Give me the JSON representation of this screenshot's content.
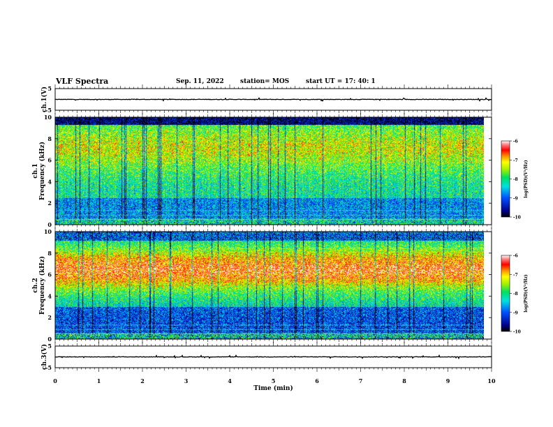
{
  "header": {
    "title": "VLF Spectra",
    "date": "Sep. 11, 2022",
    "station": "station= MOS",
    "start": "start  UT =   17: 40: 1"
  },
  "chart_data": [
    {
      "type": "line",
      "name": "ch1-waveform",
      "ylabel": "ch.1(V)",
      "ylim": [
        -5,
        5
      ],
      "yticks": [
        5,
        -5
      ],
      "xlim": [
        0,
        10
      ]
    },
    {
      "type": "heatmap",
      "name": "ch1-spectrogram",
      "ylabel": "ch.1\nFrequency (kHz)",
      "ylabel_lines": [
        "ch.1",
        "Frequency (kHz)"
      ],
      "ylim": [
        0,
        10
      ],
      "yticks": [
        0,
        2,
        4,
        6,
        8,
        10
      ],
      "xlim": [
        0,
        10
      ],
      "data_end_min": 9.83,
      "colorbar": {
        "label": "log(PSD)(V²/Hz)",
        "range": [
          -10,
          -6
        ],
        "ticks": [
          -10,
          -9,
          -8,
          -7,
          -6
        ]
      }
    },
    {
      "type": "heatmap",
      "name": "ch2-spectrogram",
      "ylabel": "ch.2\nFrequency (kHz)",
      "ylabel_lines": [
        "ch.2",
        "Frequency (kHz)"
      ],
      "ylim": [
        0,
        10
      ],
      "yticks": [
        0,
        2,
        4,
        6,
        8,
        10
      ],
      "xlim": [
        0,
        10
      ],
      "data_end_min": 9.83,
      "colorbar": {
        "label": "log(PSD)(V²/Hz)",
        "range": [
          -10,
          -6
        ],
        "ticks": [
          -10,
          -9,
          -8,
          -7,
          -6
        ]
      }
    },
    {
      "type": "line",
      "name": "ch3-waveform",
      "ylabel": "ch.3(V)",
      "ylim": [
        -5,
        5
      ],
      "yticks": [
        5,
        -5
      ],
      "xlim": [
        0,
        10
      ],
      "xlabel": "Time (min)",
      "xticks": [
        0,
        1,
        2,
        3,
        4,
        5,
        6,
        7,
        8,
        9,
        10
      ]
    }
  ]
}
